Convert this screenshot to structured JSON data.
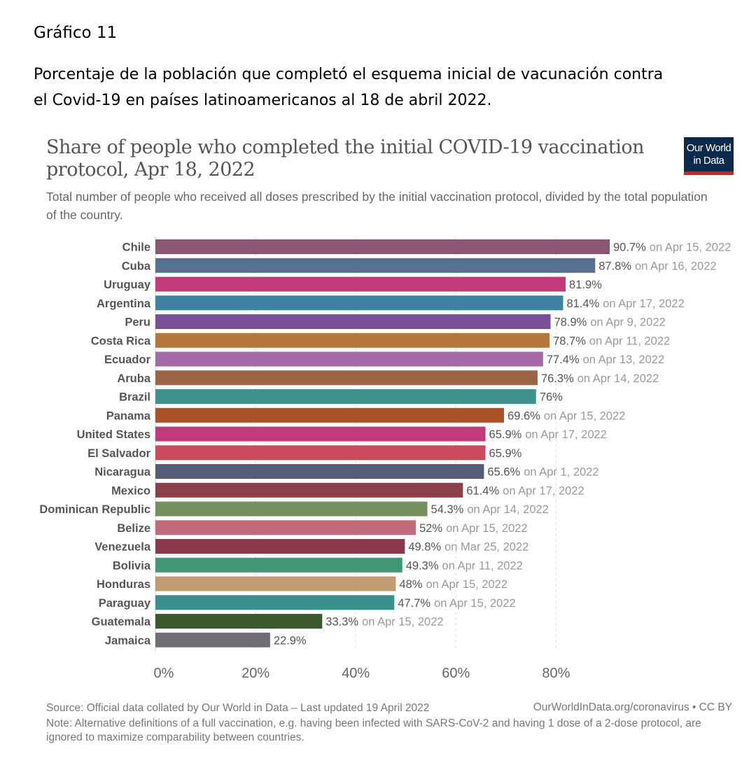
{
  "doc": {
    "label": "Gráfico 11",
    "caption": "Porcentaje de la población que completó el esquema inicial de vacunación contra el Covid-19 en países latinoamericanos al 18 de abril 2022."
  },
  "header": {
    "title": "Share of people who completed the initial COVID-19 vaccination protocol, Apr 18, 2022",
    "subtitle": "Total number of people who received all doses prescribed by the initial vaccination protocol, divided by the total population of the country.",
    "logo_line1": "Our World",
    "logo_line2": "in Data"
  },
  "footer": {
    "source": "Source: Official data collated by Our World in Data – Last updated 19 April 2022",
    "credit": "OurWorldInData.org/coronavirus • CC BY",
    "note": "Note: Alternative definitions of a full vaccination, e.g. having been infected with SARS-CoV-2 and having 1 dose of a 2-dose protocol, are ignored to maximize comparability between countries."
  },
  "chart_data": {
    "type": "bar",
    "orientation": "horizontal",
    "unit": "%",
    "xlim": [
      0,
      90.7
    ],
    "x_ticks": [
      {
        "value": 0,
        "label": "0%"
      },
      {
        "value": 20,
        "label": "20%"
      },
      {
        "value": 40,
        "label": "40%"
      },
      {
        "value": 60,
        "label": "60%"
      },
      {
        "value": 80,
        "label": "80%"
      }
    ],
    "grid": "vertical dashed",
    "categories": [
      "Chile",
      "Cuba",
      "Uruguay",
      "Argentina",
      "Peru",
      "Costa Rica",
      "Ecuador",
      "Aruba",
      "Brazil",
      "Panama",
      "United States",
      "El Salvador",
      "Nicaragua",
      "Mexico",
      "Dominican Republic",
      "Belize",
      "Venezuela",
      "Bolivia",
      "Honduras",
      "Paraguay",
      "Guatemala",
      "Jamaica"
    ],
    "values": [
      90.7,
      87.8,
      81.9,
      81.4,
      78.9,
      78.7,
      77.4,
      76.3,
      76,
      69.6,
      65.9,
      65.9,
      65.6,
      61.4,
      54.3,
      52,
      49.8,
      49.3,
      48,
      47.7,
      33.3,
      22.9
    ],
    "value_labels": [
      "90.7%",
      "87.8%",
      "81.9%",
      "81.4%",
      "78.9%",
      "78.7%",
      "77.4%",
      "76.3%",
      "76%",
      "69.6%",
      "65.9%",
      "65.9%",
      "65.6%",
      "61.4%",
      "54.3%",
      "52%",
      "49.8%",
      "49.3%",
      "48%",
      "47.7%",
      "33.3%",
      "22.9%"
    ],
    "date_labels": [
      "on Apr 15, 2022",
      "on Apr 16, 2022",
      "",
      "on Apr 17, 2022",
      "on Apr 9, 2022",
      "on Apr 11, 2022",
      "on Apr 13, 2022",
      "on Apr 14, 2022",
      "",
      "on Apr 15, 2022",
      "on Apr 17, 2022",
      "",
      "on Apr 1, 2022",
      "on Apr 17, 2022",
      "on Apr 14, 2022",
      "on Apr 15, 2022",
      "on Mar 25, 2022",
      "on Apr 11, 2022",
      "on Apr 15, 2022",
      "on Apr 15, 2022",
      "on Apr 15, 2022",
      ""
    ],
    "colors": [
      "#8c5473",
      "#586f8f",
      "#c13a79",
      "#3f82a1",
      "#7a509b",
      "#b5773a",
      "#a46aa6",
      "#9b6544",
      "#3f918b",
      "#ab5128",
      "#c13a79",
      "#ca4a5e",
      "#545d75",
      "#8b4149",
      "#75915d",
      "#c56a7b",
      "#8a3a4a",
      "#3f9775",
      "#c09b70",
      "#3a918b",
      "#3a5a2b",
      "#6e6e74"
    ]
  }
}
